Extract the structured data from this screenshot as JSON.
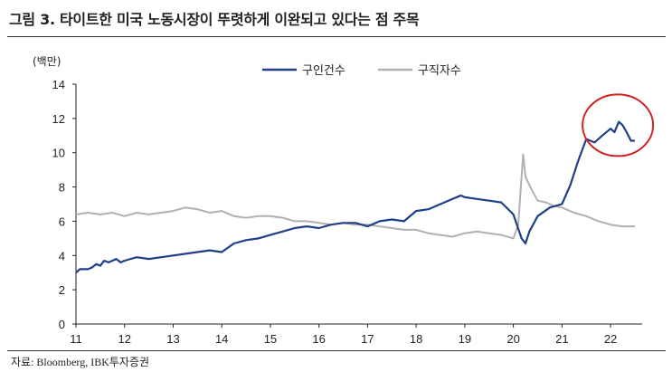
{
  "title": "그림 3. 타이트한 미국 노동시장이 뚜렷하게 이완되고 있다는 점 주목",
  "source": "자료: Bloomberg, IBK투자증권",
  "chart_data": {
    "type": "line",
    "ylabel": "(백만)",
    "ylim": [
      0,
      14
    ],
    "yticks": [
      "0",
      "2",
      "4",
      "6",
      "8",
      "10",
      "12",
      "14"
    ],
    "xlim": [
      2011.0,
      2022.65
    ],
    "xticks": [
      "11",
      "12",
      "13",
      "14",
      "15",
      "16",
      "17",
      "18",
      "19",
      "20",
      "21",
      "22"
    ],
    "legend_position": "top",
    "grid": false,
    "annotation": "red circle around 2022 job openings peak",
    "colors": {
      "job_openings": "#1f3f87",
      "unemployed": "#b0b0b0",
      "annotation": "#d22020"
    },
    "series": [
      {
        "name": "구인건수",
        "x": [
          2011.0,
          2011.08,
          2011.17,
          2011.25,
          2011.33,
          2011.42,
          2011.5,
          2011.58,
          2011.67,
          2011.75,
          2011.83,
          2011.92,
          2012.0,
          2012.25,
          2012.5,
          2012.75,
          2013.0,
          2013.25,
          2013.5,
          2013.75,
          2014.0,
          2014.25,
          2014.5,
          2014.75,
          2015.0,
          2015.25,
          2015.5,
          2015.75,
          2016.0,
          2016.25,
          2016.5,
          2016.75,
          2017.0,
          2017.25,
          2017.5,
          2017.75,
          2018.0,
          2018.25,
          2018.5,
          2018.75,
          2018.92,
          2019.0,
          2019.25,
          2019.5,
          2019.75,
          2020.0,
          2020.17,
          2020.25,
          2020.33,
          2020.5,
          2020.75,
          2021.0,
          2021.17,
          2021.33,
          2021.5,
          2021.67,
          2021.83,
          2022.0,
          2022.08,
          2022.17,
          2022.25,
          2022.33,
          2022.42,
          2022.5
        ],
        "values": [
          3.0,
          3.2,
          3.2,
          3.2,
          3.3,
          3.5,
          3.4,
          3.7,
          3.6,
          3.7,
          3.8,
          3.6,
          3.7,
          3.9,
          3.8,
          3.9,
          4.0,
          4.1,
          4.2,
          4.3,
          4.2,
          4.7,
          4.9,
          5.0,
          5.2,
          5.4,
          5.6,
          5.7,
          5.6,
          5.8,
          5.9,
          5.9,
          5.7,
          6.0,
          6.1,
          6.0,
          6.6,
          6.7,
          7.0,
          7.3,
          7.5,
          7.4,
          7.3,
          7.2,
          7.1,
          6.4,
          5.0,
          4.7,
          5.4,
          6.3,
          6.8,
          7.0,
          8.1,
          9.5,
          10.8,
          10.6,
          11.0,
          11.4,
          11.2,
          11.8,
          11.6,
          11.2,
          10.7,
          10.7
        ]
      },
      {
        "name": "구직자수",
        "x": [
          2011.0,
          2011.25,
          2011.5,
          2011.75,
          2012.0,
          2012.25,
          2012.5,
          2012.75,
          2013.0,
          2013.25,
          2013.5,
          2013.75,
          2014.0,
          2014.25,
          2014.5,
          2014.75,
          2015.0,
          2015.25,
          2015.5,
          2015.75,
          2016.0,
          2016.25,
          2016.5,
          2016.75,
          2017.0,
          2017.25,
          2017.5,
          2017.75,
          2018.0,
          2018.25,
          2018.5,
          2018.75,
          2019.0,
          2019.25,
          2019.5,
          2019.75,
          2020.0,
          2020.1,
          2020.2,
          2020.25,
          2020.33,
          2020.5,
          2020.67,
          2020.83,
          2021.0,
          2021.25,
          2021.5,
          2021.75,
          2022.0,
          2022.25,
          2022.5
        ],
        "values": [
          6.4,
          6.5,
          6.4,
          6.5,
          6.3,
          6.5,
          6.4,
          6.5,
          6.6,
          6.8,
          6.7,
          6.5,
          6.6,
          6.3,
          6.2,
          6.3,
          6.3,
          6.2,
          6.0,
          6.0,
          5.9,
          5.8,
          5.9,
          5.8,
          5.8,
          5.7,
          5.6,
          5.5,
          5.5,
          5.3,
          5.2,
          5.1,
          5.3,
          5.4,
          5.3,
          5.2,
          5.0,
          5.8,
          9.9,
          8.6,
          8.1,
          7.2,
          7.1,
          6.9,
          6.8,
          6.5,
          6.3,
          6.0,
          5.8,
          5.7,
          5.7
        ]
      }
    ]
  }
}
